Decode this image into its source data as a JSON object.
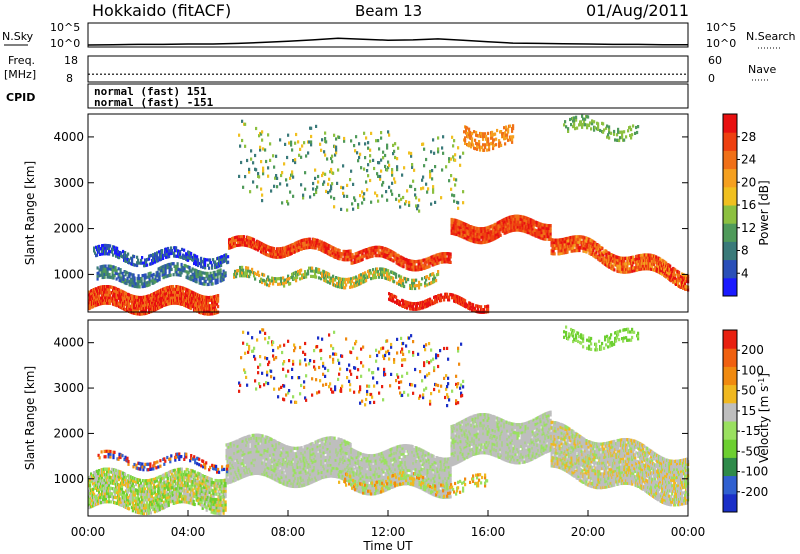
{
  "header": {
    "title": "Hokkaido (fitACF)",
    "beam": "Beam 13",
    "date": "01/Aug/2011"
  },
  "colors": {
    "power_scale": [
      "#1a1aff",
      "#2a4fb8",
      "#3a7a7a",
      "#4f9a5a",
      "#8cc040",
      "#f0c020",
      "#f5a020",
      "#f07018",
      "#ee4010",
      "#e81010"
    ],
    "velocity_scale": [
      "#1a2fc8",
      "#3060d0",
      "#2e8a4a",
      "#6ccf30",
      "#9ae060",
      "#bebebe",
      "#f0b820",
      "#f08a10",
      "#f06010",
      "#e82010"
    ]
  },
  "chart_data": [
    {
      "id": "nsky-nsearch",
      "type": "line",
      "left_label": "N.Sky",
      "right_label": "N.Search",
      "left_ticks": [
        "10^5",
        "10^0"
      ],
      "right_ticks": [
        "10^5",
        "10^0"
      ],
      "series": [
        {
          "x": [
            0,
            1,
            2,
            3,
            4,
            5,
            6,
            7,
            8,
            9,
            10,
            11,
            12,
            13,
            14,
            15,
            16,
            17,
            18,
            19,
            20,
            21,
            22,
            23,
            24
          ],
          "values": [
            1.0,
            1.1,
            1.2,
            1.2,
            1.3,
            1.3,
            1.5,
            1.8,
            2.2,
            2.6,
            3.1,
            2.8,
            2.5,
            2.6,
            2.9,
            2.5,
            2.0,
            1.6,
            1.5,
            1.4,
            1.3,
            1.2,
            1.2,
            1.1,
            1.1
          ]
        }
      ]
    },
    {
      "id": "freq-nave",
      "type": "line",
      "left_label": "Freq.",
      "left_unit": "[MHz]",
      "right_label": "Nave",
      "left_ticks": [
        "18",
        "8"
      ],
      "right_ticks": [
        "60",
        "0"
      ],
      "series": [
        {
          "x": [
            0,
            24
          ],
          "values": [
            11,
            11
          ]
        }
      ]
    },
    {
      "id": "cpid",
      "type": "table",
      "label": "CPID",
      "rows": [
        "normal (fast) 151",
        "normal (fast) -151"
      ]
    },
    {
      "id": "power",
      "type": "heatmap",
      "ylabel": "Slant Range [km]",
      "ylim": [
        180,
        4500
      ],
      "yticks": [
        1000,
        2000,
        3000,
        4000
      ],
      "xlim": [
        0,
        24
      ],
      "colorbar_label": "Power [dB]",
      "colorbar_ticks": [
        28,
        24,
        20,
        16,
        12,
        8,
        4
      ],
      "colorbar_range": [
        0,
        32
      ]
    },
    {
      "id": "velocity",
      "type": "heatmap",
      "ylabel": "Slant Range [km]",
      "ylim": [
        180,
        4500
      ],
      "yticks": [
        1000,
        2000,
        3000,
        4000
      ],
      "xlim": [
        0,
        24
      ],
      "xlabel": "Time UT",
      "xticks": [
        "00:00",
        "04:00",
        "08:00",
        "12:00",
        "16:00",
        "20:00",
        "00:00"
      ],
      "colorbar_label": "Velocity [m s",
      "colorbar_label_sup": "-1",
      "colorbar_label_end": "]",
      "colorbar_ticks": [
        "200",
        "100",
        "50",
        "15",
        "-15",
        "-50",
        "-100",
        "-200"
      ]
    }
  ]
}
